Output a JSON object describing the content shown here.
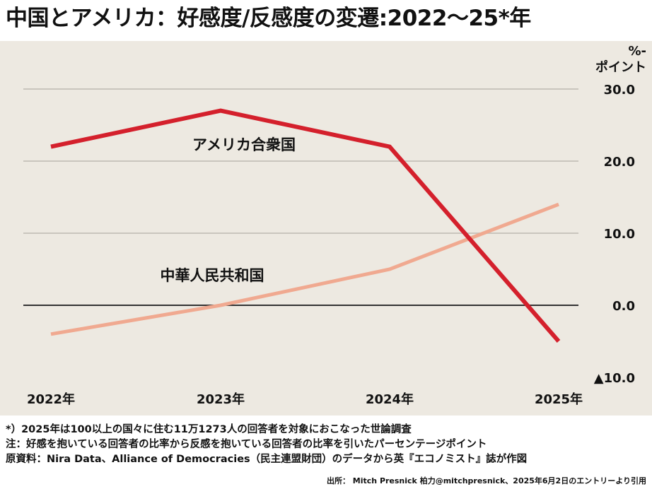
{
  "chart_data": {
    "type": "line",
    "title": "中国とアメリカ：好感度/反感度の変遷:2022〜25*年",
    "unit_label": [
      "%-",
      "ポイント"
    ],
    "categories": [
      "2022年",
      "2023年",
      "2024年",
      "2025年"
    ],
    "ylim": [
      -10,
      30
    ],
    "yticks": [
      30,
      20,
      10,
      0,
      -10
    ],
    "ytick_labels": [
      "30.0",
      "20.0",
      "10.0",
      "0.0",
      "▲10.0"
    ],
    "grid": true,
    "series": [
      {
        "name": "アメリカ合衆国",
        "values": [
          22,
          27,
          22,
          -5
        ],
        "color": "#d4202c"
      },
      {
        "name": "中華人民共和国",
        "values": [
          -4,
          0,
          5,
          14
        ],
        "color": "#f0a990"
      }
    ]
  },
  "notes": [
    "*）2025年は100以上の国々に住む11万1273人の回答者を対象におこなった世論調査",
    "注：好感を抱いている回答者の比率から反感を抱いている回答者の比率を引いたパーセンテージポイント",
    "原資料：Nira Data、Alliance of Democracies（民主連盟財団）のデータから英『エコノミスト』誌が作図"
  ],
  "source": "出所： Mitch Presnick 柏力@mitchpresnick、2025年6月2日のエントリーより引用"
}
